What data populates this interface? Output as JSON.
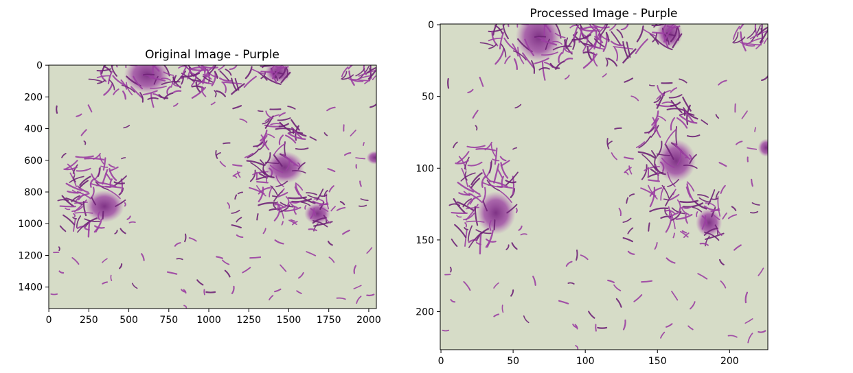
{
  "panels": [
    {
      "title": "Original Image - Purple",
      "x_ticks": [
        "0",
        "250",
        "500",
        "750",
        "1000",
        "1250",
        "1500",
        "1750",
        "2000"
      ],
      "y_ticks": [
        "0",
        "200",
        "400",
        "600",
        "800",
        "1000",
        "1200",
        "1400"
      ],
      "image_width": 2048,
      "image_height": 1536,
      "description": "Micrograph of purple rod-shaped bacteria on a pale green background"
    },
    {
      "title": "Processed Image - Purple",
      "x_ticks": [
        "0",
        "50",
        "100",
        "150",
        "200"
      ],
      "y_ticks": [
        "0",
        "50",
        "100",
        "150",
        "200"
      ],
      "image_width": 227,
      "image_height": 227,
      "description": "Resized square version of the same micrograph"
    }
  ],
  "colors": {
    "background": "#d6dcc7",
    "stain": "#9b3fa2",
    "stain_dark": "#6f2377"
  }
}
